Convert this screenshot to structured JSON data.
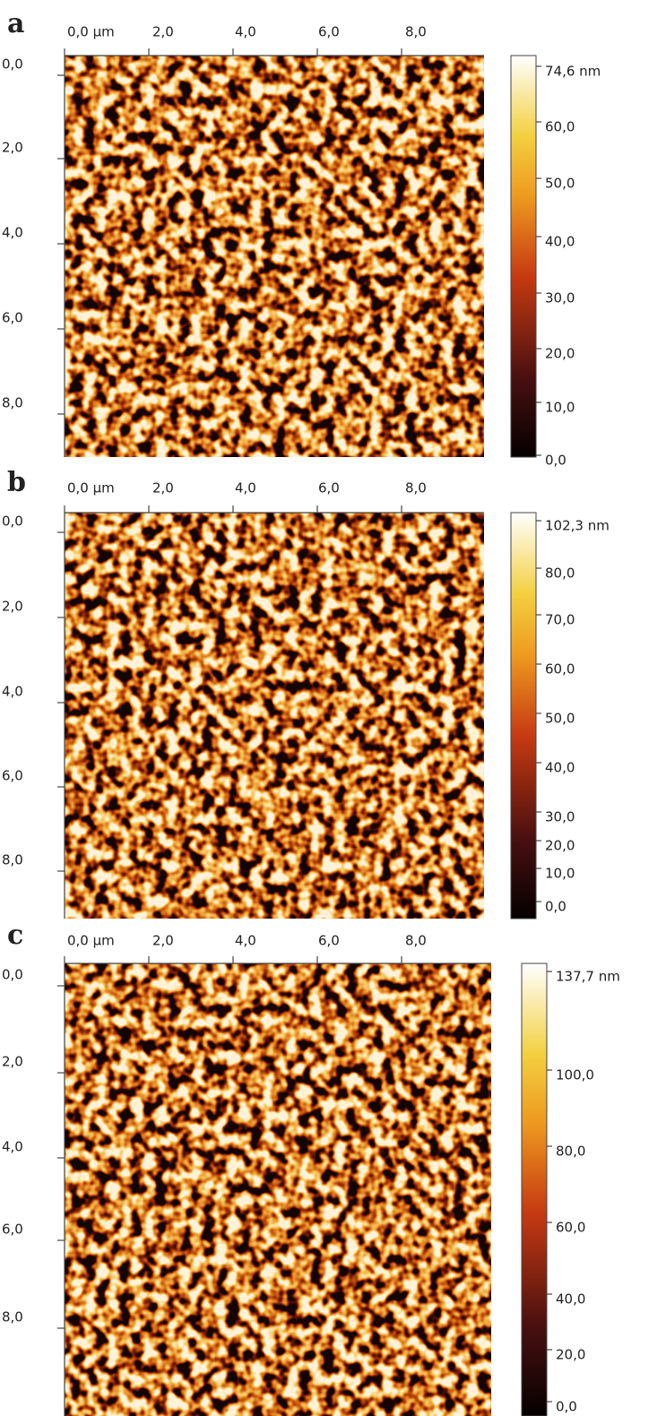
{
  "panels": [
    {
      "label": "a",
      "x_ticks": [
        "0,0 µm",
        "2,0",
        "4,0",
        "6,0",
        "8,0"
      ],
      "y_ticks": [
        "0,0",
        "2,0",
        "4,0",
        "6,0",
        "8,0"
      ],
      "colorbar_ticks": [
        "74,6 nm",
        "60,0",
        "50,0",
        "40,0",
        "30,0",
        "20,0",
        "10,0",
        "0,0"
      ]
    },
    {
      "label": "b",
      "x_ticks": [
        "0,0 µm",
        "2,0",
        "4,0",
        "6,0",
        "8,0"
      ],
      "y_ticks": [
        "0,0",
        "2,0",
        "4,0",
        "6,0",
        "8,0"
      ],
      "colorbar_ticks": [
        "102,3 nm",
        "80,0",
        "70,0",
        "60,0",
        "50,0",
        "40,0",
        "30,0",
        "20,0",
        "10,0",
        "0,0"
      ]
    },
    {
      "label": "c",
      "x_ticks": [
        "0,0 µm",
        "2,0",
        "4,0",
        "6,0",
        "8,0"
      ],
      "y_ticks": [
        "0,0",
        "2,0",
        "4,0",
        "6,0",
        "8,0"
      ],
      "colorbar_ticks": [
        "137,7 nm",
        "100,0",
        "80,0",
        "60,0",
        "40,0",
        "20,0",
        "0,0"
      ]
    }
  ]
}
